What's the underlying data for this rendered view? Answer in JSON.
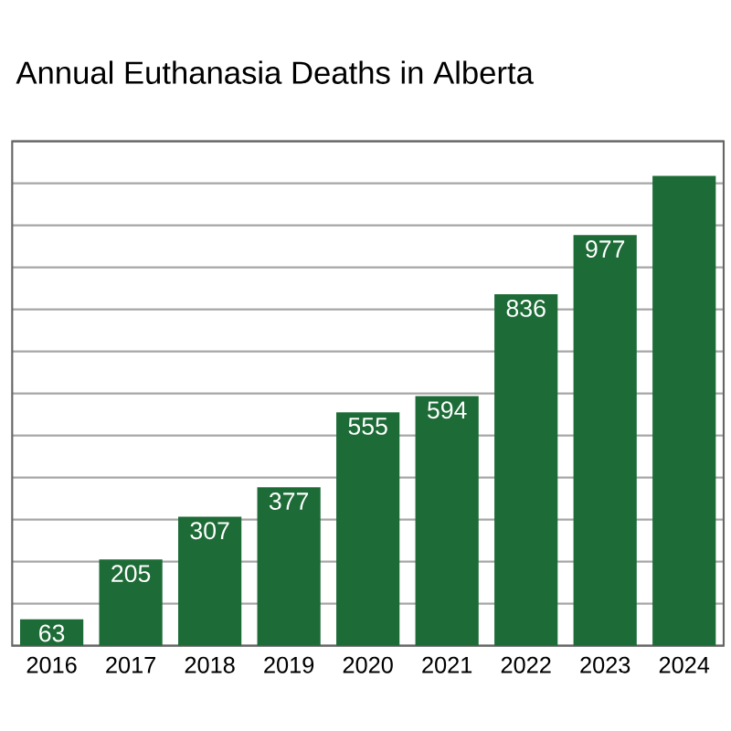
{
  "chart_data": {
    "type": "bar",
    "title": "Annual Euthanasia Deaths in Alberta",
    "categories": [
      "2016",
      "2017",
      "2018",
      "2019",
      "2020",
      "2021",
      "2022",
      "2023",
      "2024"
    ],
    "values": [
      63,
      205,
      307,
      377,
      555,
      594,
      836,
      977,
      1118
    ],
    "value_labels": [
      "63",
      "205",
      "307",
      "377",
      "555",
      "594",
      "836",
      "977",
      null
    ],
    "color": "#1d6b36",
    "ylim": [
      0,
      1200
    ],
    "yticks": [
      {
        "value": 0,
        "label": null
      },
      {
        "value": 100,
        "label": null
      },
      {
        "value": 200,
        "label": null
      },
      {
        "value": 300,
        "label": null
      },
      {
        "value": 400,
        "label": null
      },
      {
        "value": 500,
        "label": null
      },
      {
        "value": 600,
        "label": null
      },
      {
        "value": 700,
        "label": null
      },
      {
        "value": 800,
        "label": null
      },
      {
        "value": 900,
        "label": null
      },
      {
        "value": 1000,
        "label": null
      },
      {
        "value": 1100,
        "label": null
      },
      {
        "value": 1200,
        "label": null
      }
    ],
    "grid": "y",
    "tick_labels": "x"
  }
}
